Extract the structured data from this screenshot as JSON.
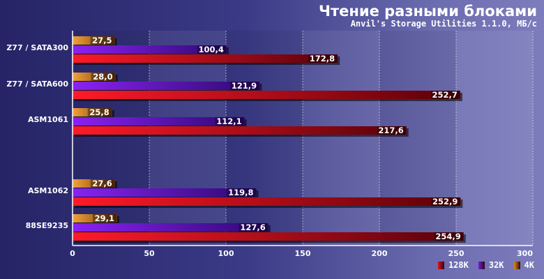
{
  "chart_data": {
    "type": "bar",
    "orientation": "horizontal",
    "title": "Чтение разными блоками",
    "subtitle": "Anvil's Storage Utilities 1.1.0, МБ/с",
    "categories": [
      "Z77 / SATA300",
      "Z77 / SATA600",
      "ASM1061",
      "ASM1062",
      "88SE9235"
    ],
    "series": [
      {
        "name": "4K",
        "color": "#e0871e",
        "values": [
          27.5,
          28.0,
          25.8,
          27.6,
          29.1
        ],
        "labels": [
          "27,5",
          "28,0",
          "25,8",
          "27,6",
          "29,1"
        ]
      },
      {
        "name": "32K",
        "color": "#7a1ae0",
        "values": [
          100.4,
          121.9,
          112.1,
          119.8,
          127.6
        ],
        "labels": [
          "100,4",
          "121,9",
          "112,1",
          "119,8",
          "127,6"
        ]
      },
      {
        "name": "128K",
        "color": "#e4101e",
        "values": [
          172.8,
          252.7,
          217.6,
          252.9,
          254.9
        ],
        "labels": [
          "172,8",
          "252,7",
          "217,6",
          "252,9",
          "254,9"
        ]
      }
    ],
    "legend_order": [
      "128K",
      "32K",
      "4K"
    ],
    "xlim": [
      0,
      300
    ],
    "xticks": [
      0,
      50,
      100,
      150,
      200,
      250,
      300
    ],
    "grid": true,
    "legend_position": "bottom-right"
  }
}
